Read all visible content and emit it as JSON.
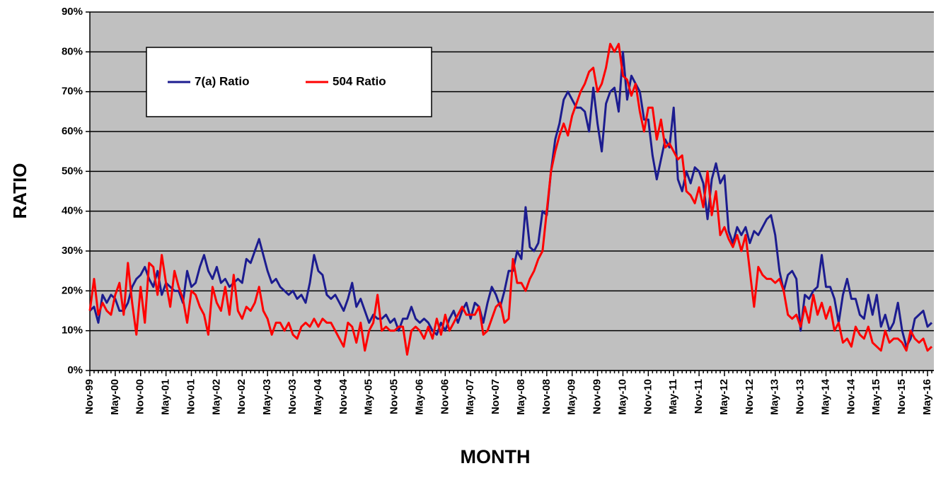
{
  "chart_data": {
    "type": "line",
    "y_label": "RATIO",
    "x_label": "MONTH",
    "categories": [
      "Nov-99",
      null,
      null,
      null,
      null,
      null,
      "May-00",
      null,
      null,
      null,
      null,
      null,
      "Nov-00",
      null,
      null,
      null,
      null,
      null,
      "May-01",
      null,
      null,
      null,
      null,
      null,
      "Nov-01",
      null,
      null,
      null,
      null,
      null,
      "May-02",
      null,
      null,
      null,
      null,
      null,
      "Nov-02",
      null,
      null,
      null,
      null,
      null,
      "May-03",
      null,
      null,
      null,
      null,
      null,
      "Nov-03",
      null,
      null,
      null,
      null,
      null,
      "May-04",
      null,
      null,
      null,
      null,
      null,
      "Nov-04",
      null,
      null,
      null,
      null,
      null,
      "May-05",
      null,
      null,
      null,
      null,
      null,
      "Nov-05",
      null,
      null,
      null,
      null,
      null,
      "May-06",
      null,
      null,
      null,
      null,
      null,
      "Nov-06",
      null,
      null,
      null,
      null,
      null,
      "May-07",
      null,
      null,
      null,
      null,
      null,
      "Nov-07",
      null,
      null,
      null,
      null,
      null,
      "May-08",
      null,
      null,
      null,
      null,
      null,
      "Nov-08",
      null,
      null,
      null,
      null,
      null,
      "May-09",
      null,
      null,
      null,
      null,
      null,
      "Nov-09",
      null,
      null,
      null,
      null,
      null,
      "May-10",
      null,
      null,
      null,
      null,
      null,
      "Nov-10",
      null,
      null,
      null,
      null,
      null,
      "May-11",
      null,
      null,
      null,
      null,
      null,
      "Nov-11",
      null,
      null,
      null,
      null,
      null,
      "May-12",
      null,
      null,
      null,
      null,
      null,
      "Nov-12",
      null,
      null,
      null,
      null,
      null,
      "May-13",
      null,
      null,
      null,
      null,
      null,
      "Nov-13",
      null,
      null,
      null,
      null,
      null,
      "May-14",
      null,
      null,
      null,
      null,
      null,
      "Nov-14",
      null,
      null,
      null,
      null,
      null,
      "May-15",
      null,
      null,
      null,
      null,
      null,
      "Nov-15",
      null,
      null,
      null,
      null,
      null,
      "May-16",
      null
    ],
    "series": [
      {
        "name": "7(a) Ratio",
        "color": "#1c1c8f",
        "values": [
          15,
          16,
          12,
          19,
          17,
          19,
          18,
          15,
          15,
          17,
          21,
          23,
          24,
          26,
          23,
          21,
          25,
          19,
          22,
          21,
          20,
          20,
          17,
          25,
          21,
          22,
          26,
          29,
          25,
          23,
          26,
          22,
          23,
          21,
          22,
          23,
          22,
          28,
          27,
          30,
          33,
          29,
          25,
          22,
          23,
          21,
          20,
          19,
          20,
          18,
          19,
          17,
          22,
          29,
          25,
          24,
          19,
          18,
          19,
          17,
          15,
          18,
          22,
          16,
          18,
          15,
          12,
          14,
          13,
          13,
          14,
          12,
          13,
          10,
          13,
          13,
          16,
          13,
          12,
          13,
          12,
          10,
          9,
          12,
          10,
          13,
          15,
          12,
          15,
          17,
          13,
          17,
          16,
          12,
          17,
          21,
          19,
          16,
          20,
          25,
          25,
          30,
          28,
          41,
          31,
          30,
          32,
          40,
          39,
          50,
          58,
          62,
          68,
          70,
          68,
          66,
          66,
          65,
          60,
          71,
          62,
          55,
          67,
          70,
          71,
          65,
          80,
          68,
          74,
          72,
          70,
          63,
          63,
          54,
          48,
          53,
          58,
          56,
          66,
          48,
          45,
          50,
          47,
          51,
          50,
          47,
          38,
          48,
          52,
          47,
          49,
          35,
          32,
          36,
          34,
          36,
          32,
          35,
          34,
          36,
          38,
          39,
          34,
          25,
          20,
          24,
          25,
          23,
          10,
          19,
          18,
          20,
          21,
          29,
          21,
          21,
          18,
          12,
          19,
          23,
          18,
          18,
          14,
          13,
          19,
          14,
          19,
          11,
          14,
          10,
          12,
          17,
          10,
          6,
          8,
          13,
          14,
          15,
          11,
          12
        ]
      },
      {
        "name": "504 Ratio",
        "color": "#ff0000",
        "values": [
          15,
          23,
          14,
          17,
          15,
          14,
          19,
          22,
          14,
          27,
          17,
          9,
          21,
          12,
          27,
          26,
          19,
          29,
          22,
          16,
          25,
          21,
          18,
          12,
          20,
          19,
          16,
          14,
          9,
          21,
          17,
          15,
          21,
          14,
          24,
          15,
          13,
          16,
          15,
          17,
          21,
          15,
          13,
          9,
          12,
          12,
          10,
          12,
          9,
          8,
          11,
          12,
          11,
          13,
          11,
          13,
          12,
          12,
          10,
          8,
          6,
          12,
          11,
          7,
          12,
          5,
          10,
          12,
          19,
          10,
          11,
          10,
          10,
          11,
          11,
          4,
          10,
          11,
          10,
          8,
          11,
          8,
          13,
          9,
          14,
          10,
          12,
          14,
          16,
          14,
          14,
          14,
          16,
          9,
          10,
          13,
          16,
          17,
          12,
          13,
          28,
          22,
          22,
          20,
          23,
          25,
          28,
          30,
          40,
          50,
          55,
          59,
          62,
          59,
          64,
          67,
          70,
          72,
          75,
          76,
          70,
          72,
          76,
          82,
          80,
          82,
          74,
          73,
          69,
          72,
          65,
          60,
          66,
          66,
          58,
          63,
          56,
          57,
          55,
          53,
          54,
          45,
          44,
          42,
          46,
          41,
          50,
          39,
          45,
          34,
          36,
          33,
          31,
          34,
          30,
          34,
          25,
          16,
          26,
          24,
          23,
          23,
          22,
          23,
          20,
          14,
          13,
          14,
          11,
          16,
          12,
          19,
          14,
          17,
          13,
          16,
          10,
          12,
          7,
          8,
          6,
          11,
          9,
          8,
          11,
          7,
          6,
          5,
          10,
          7,
          8,
          8,
          7,
          5,
          10,
          8,
          7,
          8,
          5,
          6
        ]
      }
    ],
    "ylim": [
      0,
      90
    ],
    "yticks": [
      {
        "value": 0,
        "label": "0%"
      },
      {
        "value": 10,
        "label": "10%"
      },
      {
        "value": 20,
        "label": "20%"
      },
      {
        "value": 30,
        "label": "30%"
      },
      {
        "value": 40,
        "label": "40%"
      },
      {
        "value": 50,
        "label": "50%"
      },
      {
        "value": 60,
        "label": "60%"
      },
      {
        "value": 70,
        "label": "70%"
      },
      {
        "value": 80,
        "label": "80%"
      },
      {
        "value": 90,
        "label": "90%"
      }
    ],
    "grid": true,
    "background": "#c0c0c0",
    "legend": "upper left"
  }
}
